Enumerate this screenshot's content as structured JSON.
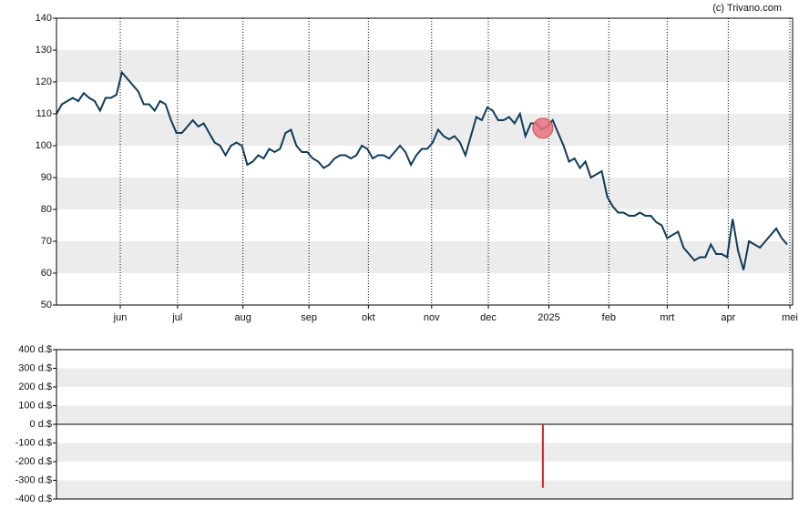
{
  "credit": "(c) Trivano.com",
  "chart_data": [
    {
      "type": "line",
      "xlim": [
        0,
        135
      ],
      "xticks": [
        {
          "value": 11.7,
          "label": "jun"
        },
        {
          "value": 22.2,
          "label": "jul"
        },
        {
          "value": 34.2,
          "label": "aug"
        },
        {
          "value": 46.3,
          "label": "sep"
        },
        {
          "value": 57.2,
          "label": "okt"
        },
        {
          "value": 68.8,
          "label": "nov"
        },
        {
          "value": 79.2,
          "label": "dec"
        },
        {
          "value": 90.3,
          "label": "2025"
        },
        {
          "value": 101.3,
          "label": "feb"
        },
        {
          "value": 112,
          "label": "mrt"
        },
        {
          "value": 123.2,
          "label": "apr"
        },
        {
          "value": 134.5,
          "label": "mei"
        }
      ],
      "ylim": [
        50,
        140
      ],
      "yticks": [
        50,
        60,
        70,
        80,
        90,
        100,
        110,
        120,
        130,
        140
      ],
      "grid": true,
      "color": "#0e3a5a",
      "values": [
        110,
        113,
        114,
        115,
        114,
        116.5,
        115,
        114,
        111,
        115,
        115,
        116,
        123,
        121,
        119,
        117,
        113,
        113,
        111,
        114,
        113,
        108,
        104,
        104,
        106,
        108,
        106,
        107,
        104,
        101,
        100,
        97,
        100,
        101,
        100,
        94,
        95,
        97,
        96,
        99,
        98,
        99,
        104,
        105,
        100,
        98,
        98,
        96,
        95,
        93,
        94,
        96,
        97,
        97,
        96,
        97,
        100,
        99,
        96,
        97,
        97,
        96,
        98,
        100,
        98,
        94,
        97,
        99,
        99,
        101,
        105,
        103,
        102,
        103,
        101,
        97,
        103,
        109,
        108,
        112,
        111,
        108,
        108,
        109,
        107,
        110,
        103,
        107,
        107,
        105,
        106,
        108,
        104,
        100,
        95,
        96,
        93,
        95,
        90,
        91,
        92,
        84,
        81,
        79,
        79,
        78,
        78,
        79,
        78,
        78,
        76,
        75,
        71,
        72,
        73,
        68,
        66,
        64,
        65,
        65,
        69,
        66,
        66,
        65,
        77,
        67,
        61,
        70,
        69,
        68,
        70,
        72,
        74,
        71,
        69
      ],
      "marker": {
        "x": 89.2,
        "value": 105.5,
        "color": "#e8737e"
      }
    },
    {
      "type": "bar",
      "xlim": [
        0,
        135
      ],
      "ylim": [
        -400,
        400
      ],
      "yticks": [
        {
          "value": -400,
          "label": "-400 d.$"
        },
        {
          "value": -300,
          "label": "-300 d.$"
        },
        {
          "value": -200,
          "label": "-200 d.$"
        },
        {
          "value": -100,
          "label": "-100 d.$"
        },
        {
          "value": 0,
          "label": "0 d.$"
        },
        {
          "value": 100,
          "label": "100 d.$"
        },
        {
          "value": 200,
          "label": "200 d.$"
        },
        {
          "value": 300,
          "label": "300 d.$"
        },
        {
          "value": 400,
          "label": "400 d.$"
        }
      ],
      "grid": true,
      "color": "#d42020",
      "x": [
        89.2
      ],
      "values": [
        -340
      ]
    }
  ]
}
